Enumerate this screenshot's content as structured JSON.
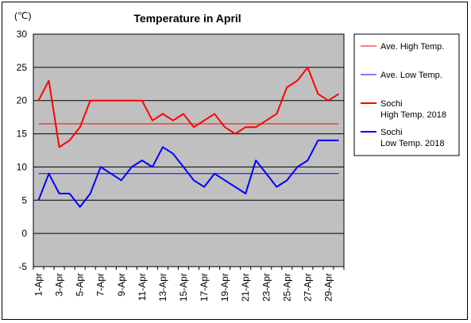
{
  "chart_data": {
    "type": "line",
    "title": "Temperature in April",
    "unit_label": "(℃)",
    "xlabel": "",
    "ylabel": "",
    "ylim": [
      -5,
      30
    ],
    "yticks": [
      30,
      25,
      20,
      15,
      10,
      5,
      0,
      -5
    ],
    "grid": true,
    "legend_position": "right",
    "x": [
      "1-Apr",
      "2-Apr",
      "3-Apr",
      "4-Apr",
      "5-Apr",
      "6-Apr",
      "7-Apr",
      "8-Apr",
      "9-Apr",
      "10-Apr",
      "11-Apr",
      "12-Apr",
      "13-Apr",
      "14-Apr",
      "15-Apr",
      "16-Apr",
      "17-Apr",
      "18-Apr",
      "19-Apr",
      "20-Apr",
      "21-Apr",
      "22-Apr",
      "23-Apr",
      "24-Apr",
      "25-Apr",
      "26-Apr",
      "27-Apr",
      "28-Apr",
      "29-Apr",
      "30-Apr"
    ],
    "xtick_labels": [
      "1-Apr",
      "3-Apr",
      "5-Apr",
      "7-Apr",
      "9-Apr",
      "11-Apr",
      "13-Apr",
      "15-Apr",
      "17-Apr",
      "19-Apr",
      "21-Apr",
      "23-Apr",
      "25-Apr",
      "27-Apr",
      "29-Apr"
    ],
    "series": [
      {
        "name": "Ave. High Temp.",
        "color": "#ff0000",
        "thin": true,
        "values": [
          16.5,
          16.5,
          16.5,
          16.5,
          16.5,
          16.5,
          16.5,
          16.5,
          16.5,
          16.5,
          16.5,
          16.5,
          16.5,
          16.5,
          16.5,
          16.5,
          16.5,
          16.5,
          16.5,
          16.5,
          16.5,
          16.5,
          16.5,
          16.5,
          16.5,
          16.5,
          16.5,
          16.5,
          16.5,
          16.5
        ]
      },
      {
        "name": "Ave. Low Temp.",
        "color": "#0000ff",
        "thin": true,
        "values": [
          9,
          9,
          9,
          9,
          9,
          9,
          9,
          9,
          9,
          9,
          9,
          9,
          9,
          9,
          9,
          9,
          9,
          9,
          9,
          9,
          9,
          9,
          9,
          9,
          9,
          9,
          9,
          9,
          9,
          9
        ]
      },
      {
        "name": "Sochi\nHigh Temp. 2018",
        "color": "#ff0000",
        "thin": false,
        "values": [
          20,
          23,
          13,
          14,
          16,
          20,
          20,
          20,
          20,
          20,
          20,
          17,
          18,
          17,
          18,
          16,
          17,
          18,
          16,
          15,
          16,
          16,
          17,
          18,
          22,
          23,
          25,
          21,
          20,
          21
        ]
      },
      {
        "name": "Sochi\nLow Temp. 2018",
        "color": "#0000ff",
        "thin": false,
        "values": [
          5,
          9,
          6,
          6,
          4,
          6,
          10,
          9,
          8,
          10,
          11,
          10,
          13,
          12,
          10,
          8,
          7,
          9,
          8,
          7,
          6,
          11,
          9,
          7,
          8,
          10,
          11,
          14,
          14,
          14
        ]
      }
    ]
  }
}
